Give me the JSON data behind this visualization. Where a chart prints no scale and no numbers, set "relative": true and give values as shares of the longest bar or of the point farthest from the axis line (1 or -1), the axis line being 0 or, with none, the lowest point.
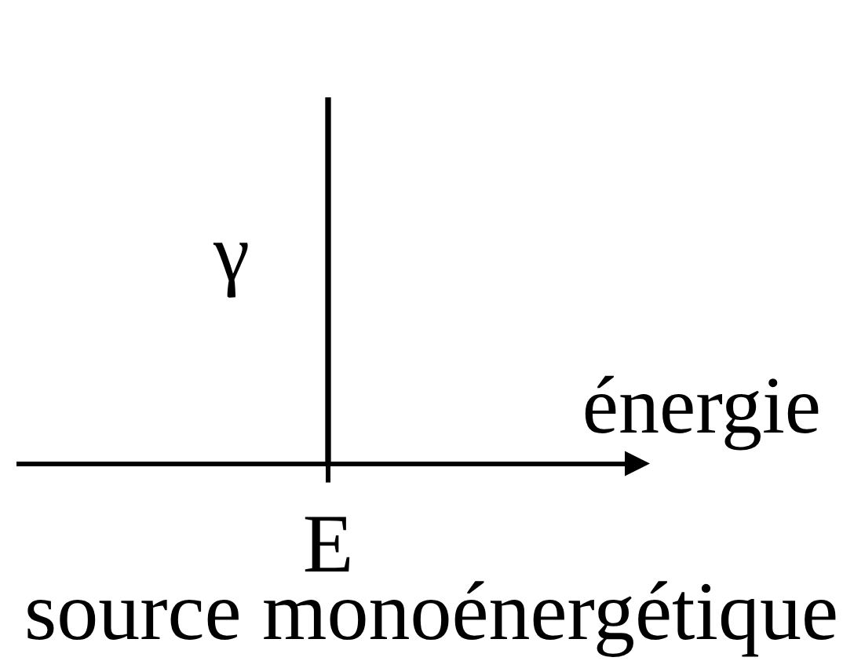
{
  "chart_data": {
    "type": "bar",
    "title": "source monoénergétique",
    "xlabel": "énergie",
    "categories": [
      "E"
    ],
    "series": [
      {
        "name": "γ",
        "color": "#000000",
        "values": [
          1
        ]
      }
    ],
    "relative": true
  }
}
